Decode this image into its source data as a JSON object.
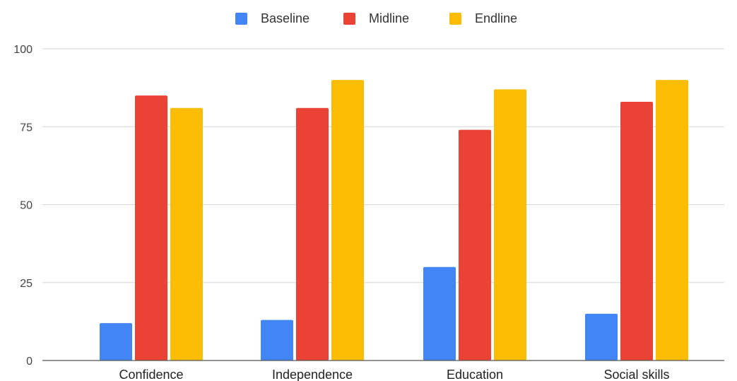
{
  "chart_data": {
    "type": "bar",
    "title": "",
    "xlabel": "",
    "ylabel": "",
    "categories": [
      "Confidence",
      "Independence",
      "Education",
      "Social skills"
    ],
    "series": [
      {
        "name": "Baseline",
        "color": "#4285f4",
        "values": [
          12,
          13,
          30,
          15
        ]
      },
      {
        "name": "Midline",
        "color": "#ea4335",
        "values": [
          85,
          81,
          74,
          83
        ]
      },
      {
        "name": "Endline",
        "color": "#fbbc04",
        "values": [
          81,
          90,
          87,
          90
        ]
      }
    ],
    "ylim": [
      0,
      100
    ],
    "yticks": [
      0,
      25,
      50,
      75,
      100
    ],
    "grid": true,
    "legend": "top-center"
  }
}
